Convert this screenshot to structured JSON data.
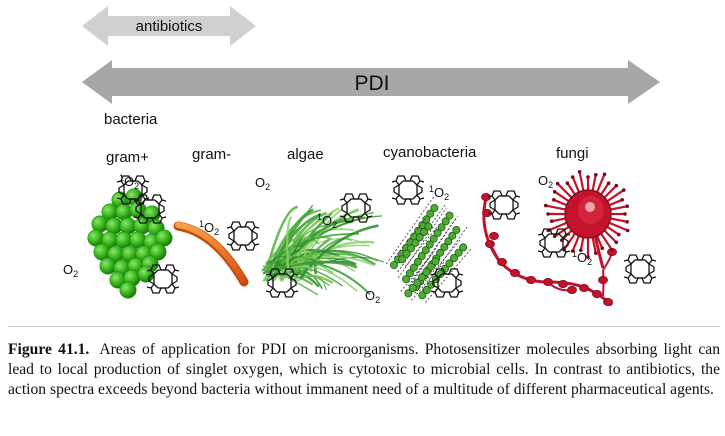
{
  "arrows": {
    "antibiotics": "antibiotics",
    "pdi": "PDI"
  },
  "groups": {
    "bacteria": "bacteria",
    "gram_pos": "gram+",
    "gram_neg": "gram-",
    "algae": "algae",
    "cyanobacteria": "cyanobacteria",
    "fungi": "fungi"
  },
  "oxygen": {
    "singlet_superscript": "1",
    "symbol": "O",
    "subscript": "2"
  },
  "colors": {
    "arrow": "#a7a7a7",
    "antibiotic_arrow": "#d0d0d0",
    "gram_pos": "#3dbb1e",
    "gram_neg": "#e8661a",
    "algae": "#4caf3a",
    "cyanobacteria": "#3f9b2c",
    "fungi": "#c4122c"
  },
  "caption": {
    "label": "Figure 41.1.",
    "text": "Areas of application for PDI on microorganisms. Photosensitizer molecules absorbing light can lead to local production of singlet oxygen, which is cytotoxic to microbial cells. In contrast to antibiotics, the action spectra exceeds beyond bacteria without immanent need of a multitude of different pharmaceutical agents."
  }
}
